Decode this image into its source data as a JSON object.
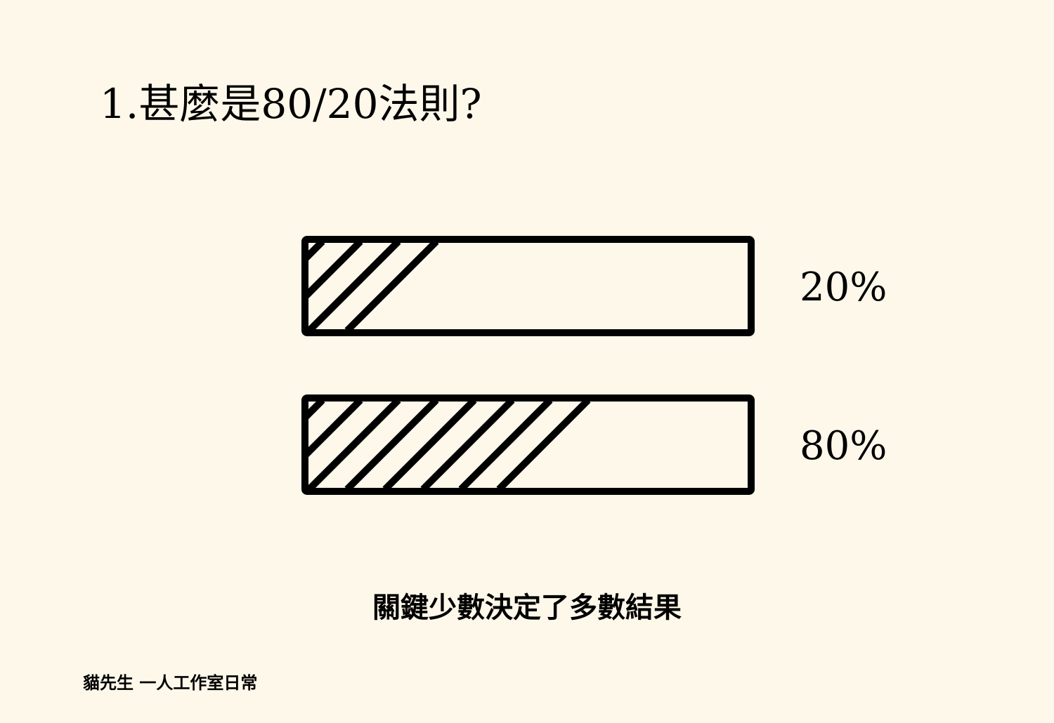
{
  "title": "1.甚麼是80/20法則?",
  "bars": [
    {
      "label": "20%",
      "stripes": 4
    },
    {
      "label": "80%",
      "stripes": 8
    }
  ],
  "caption": "關鍵少數決定了多數結果",
  "footer": "貓先生 一人工作室日常"
}
